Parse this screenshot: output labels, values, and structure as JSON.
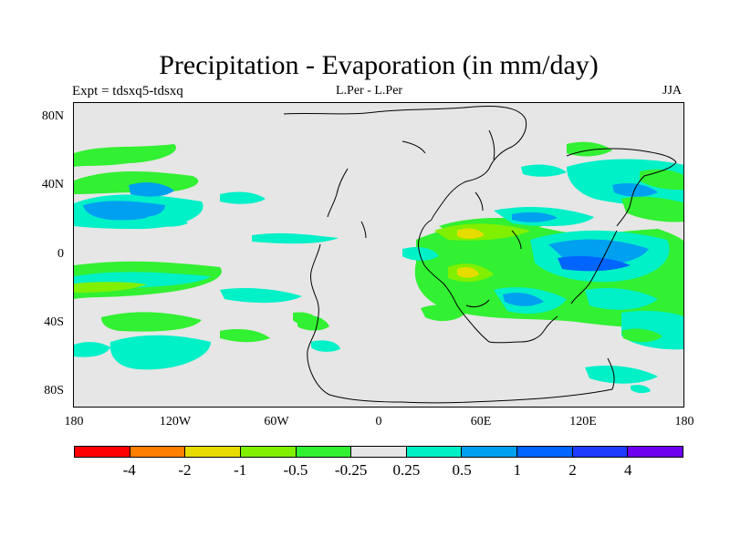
{
  "title": "Precipitation - Evaporation (in mm/day)",
  "subtitle_left": "Expt = tdsxq5-tdsxq",
  "subtitle_center": "L.Per - L.Per",
  "subtitle_right": "JJA",
  "map": {
    "background_color": "#e6e6e6",
    "lat_ticks": [
      "80N",
      "40N",
      "0",
      "40S",
      "80S"
    ],
    "lon_ticks": [
      "180",
      "120W",
      "60W",
      "0",
      "60E",
      "120E",
      "180"
    ]
  },
  "colorbar": {
    "colors": [
      "#ff0000",
      "#ff8000",
      "#e6dc00",
      "#80f000",
      "#32f032",
      "#e6e6e6",
      "#00f0c8",
      "#00a0f0",
      "#0064ff",
      "#1e3cff",
      "#6e00f0"
    ],
    "labels": [
      "-4",
      "-2",
      "-1",
      "-0.5",
      "-0.25",
      "0.25",
      "0.5",
      "1",
      "2",
      "4"
    ]
  }
}
